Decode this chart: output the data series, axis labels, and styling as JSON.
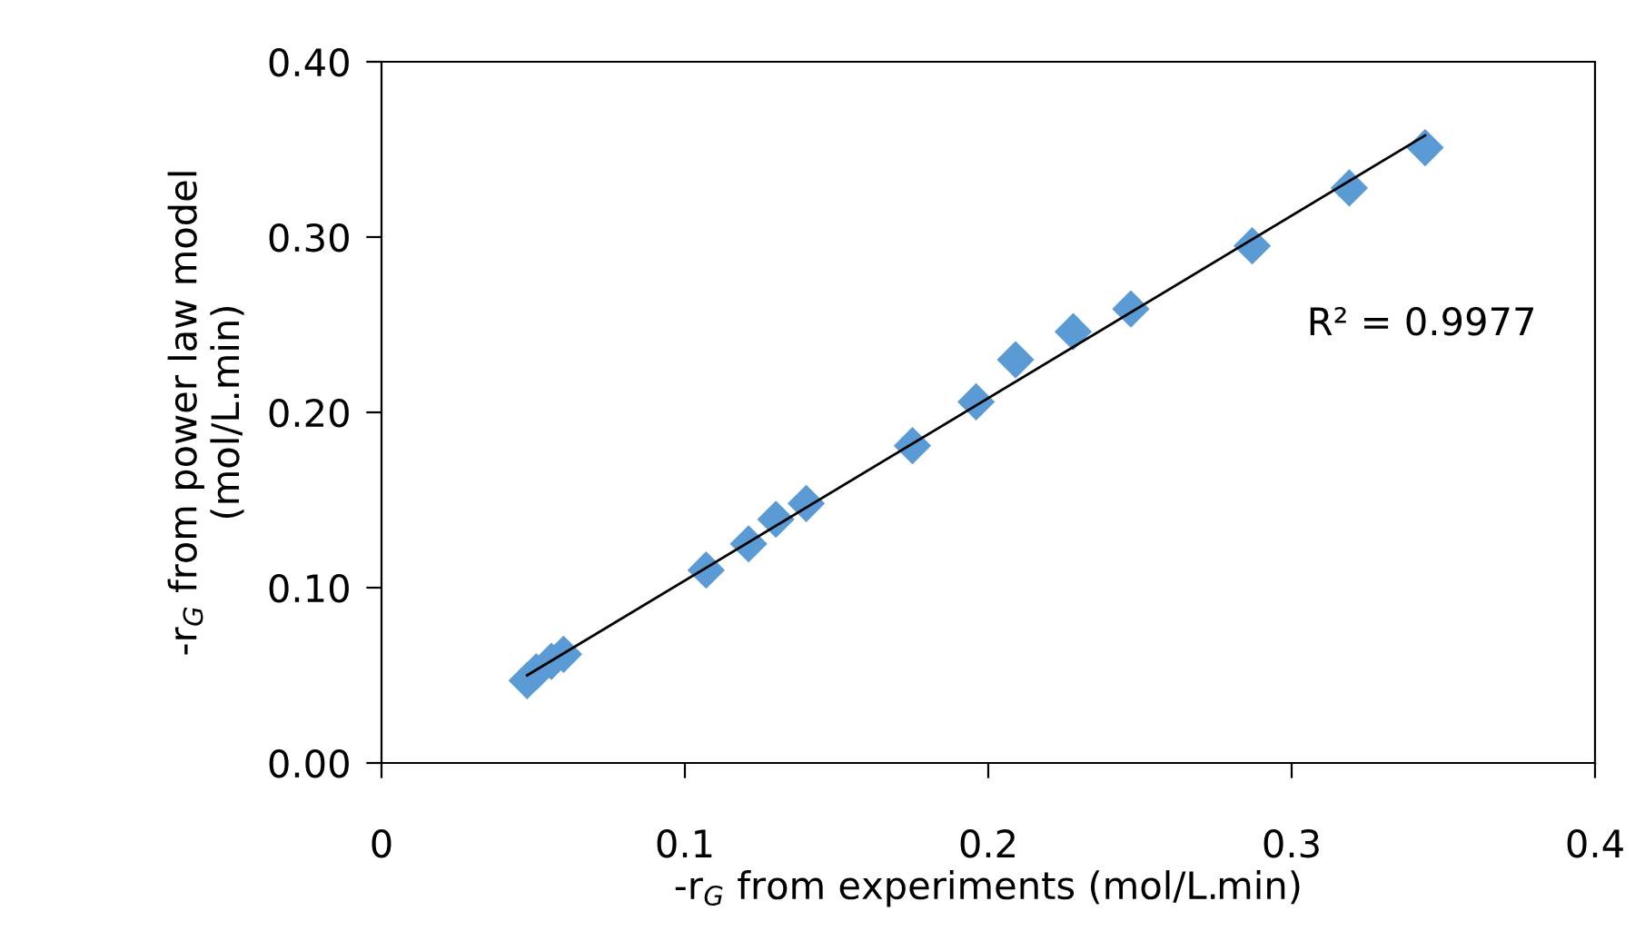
{
  "chart_data": {
    "type": "scatter",
    "xlabel": "-r$_{G}$ from experiments (mol/L.min)",
    "ylabel": "-r$_{G}$ from power law model\n(mol/L.min)",
    "x": [
      0.048,
      0.051,
      0.056,
      0.06,
      0.107,
      0.121,
      0.13,
      0.14,
      0.175,
      0.196,
      0.209,
      0.228,
      0.247,
      0.287,
      0.319,
      0.344
    ],
    "series": [
      {
        "color": "#5b9bd5",
        "marker": "diamond",
        "values": [
          0.047,
          0.052,
          0.058,
          0.062,
          0.11,
          0.125,
          0.139,
          0.148,
          0.181,
          0.206,
          0.23,
          0.246,
          0.259,
          0.295,
          0.328,
          0.351
        ]
      },
      {
        "type": "line",
        "color": "#000000",
        "marker": "none",
        "x": [
          0.048,
          0.344
        ],
        "values": [
          0.05,
          0.358
        ]
      }
    ],
    "annotations": [
      "R² = 0.9977"
    ],
    "xlim": [
      0,
      0.4
    ],
    "xticks": [
      0,
      0.1,
      0.2,
      0.3,
      0.4
    ],
    "ylim": [
      0,
      0.4
    ],
    "yticks": [
      {
        "value": 0,
        "label": "0.00"
      },
      {
        "value": 0.1,
        "label": "0.10"
      },
      {
        "value": 0.2,
        "label": "0.20"
      },
      {
        "value": 0.3,
        "label": "0.30"
      },
      {
        "value": 0.4,
        "label": "0.40"
      }
    ],
    "grid": false,
    "legend": false
  }
}
